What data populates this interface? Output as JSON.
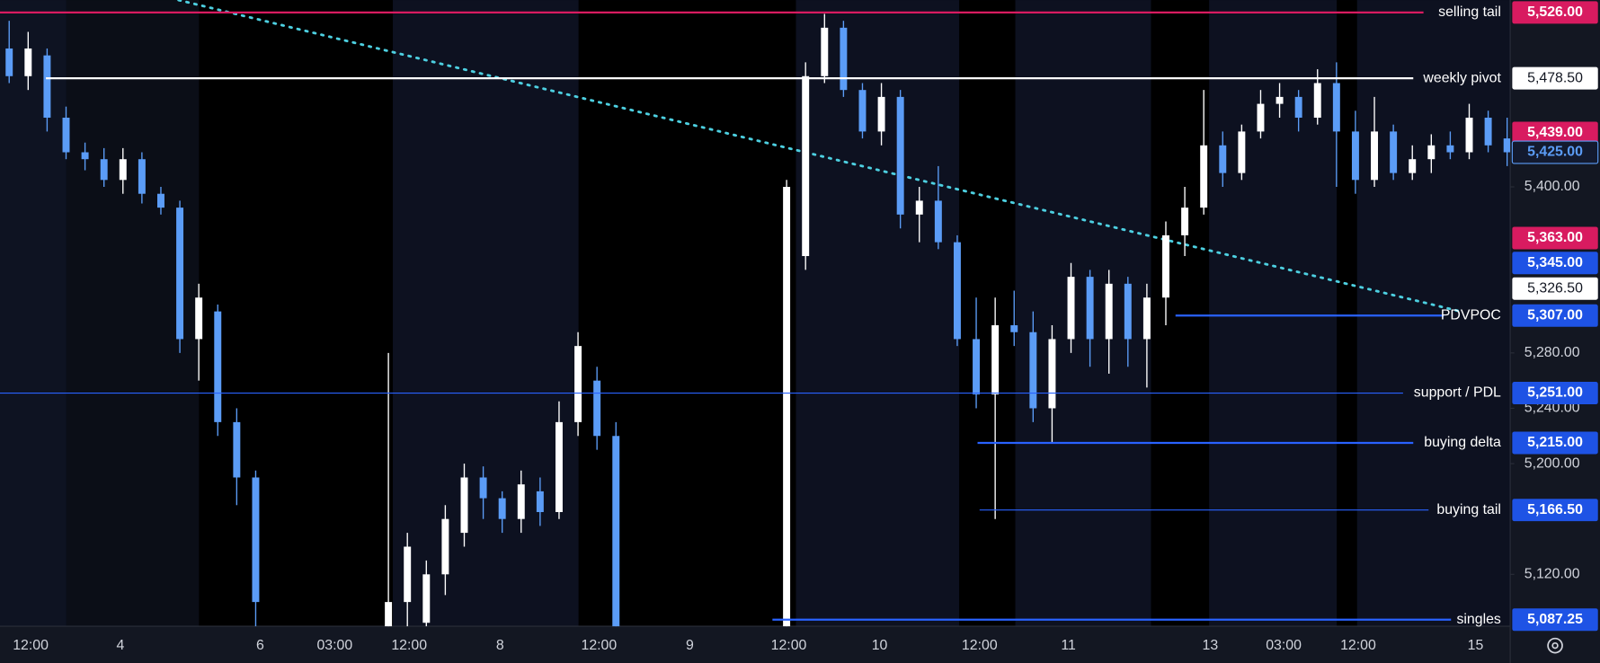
{
  "chart_data": {
    "type": "candlestick",
    "ylim": [
      5082.5,
      5535
    ],
    "yticks": [
      {
        "value": 5400,
        "label": "5,400.00"
      },
      {
        "value": 5280,
        "label": "5,280.00"
      },
      {
        "value": 5240,
        "label": "5,240.00"
      },
      {
        "value": 5200,
        "label": "5,200.00"
      },
      {
        "value": 5120,
        "label": "5,120.00"
      }
    ],
    "xlabels": [
      "12:00",
      "4",
      "6",
      "03:00",
      "12:00",
      "8",
      "12:00",
      "9",
      "12:00",
      "10",
      "12:00",
      "11",
      "13",
      "03:00",
      "12:00",
      "15"
    ],
    "up_color": "#ffffff",
    "down_color": "#5b9cf6",
    "open": [
      5500,
      5480,
      5495,
      5450,
      5425,
      5420,
      5405,
      5420,
      5395,
      5385,
      5290,
      5310,
      5230,
      5190,
      null,
      null,
      null,
      null,
      null,
      null,
      5075,
      5100,
      5085,
      5120,
      5150,
      5190,
      5175,
      5160,
      5180,
      5165,
      5230,
      5260,
      5220,
      null,
      null,
      null,
      null,
      null,
      null,
      null,
      null,
      5080,
      5350,
      5480,
      5515,
      5470,
      5440,
      5465,
      5380,
      5390,
      5360,
      5290,
      5250,
      5300,
      5295,
      5240,
      5290,
      5335,
      5290,
      5330,
      5290,
      5320,
      5365,
      5385,
      5430,
      5410,
      5440,
      5460,
      5465,
      5450,
      5475,
      5440,
      5405,
      5440,
      5410,
      5420,
      5430,
      5425,
      5450,
      5435
    ],
    "high": [
      5520,
      5512,
      5500,
      5458,
      5432,
      5428,
      5428,
      5425,
      5400,
      5390,
      5330,
      5315,
      5240,
      5195,
      null,
      null,
      null,
      null,
      null,
      null,
      5280,
      5150,
      5130,
      5170,
      5200,
      5198,
      5180,
      5195,
      5190,
      5245,
      5295,
      5270,
      5230,
      null,
      null,
      null,
      null,
      null,
      null,
      null,
      null,
      5405,
      5490,
      5525,
      5520,
      5475,
      5475,
      5470,
      5400,
      5415,
      5365,
      5320,
      5320,
      5325,
      5310,
      5300,
      5345,
      5340,
      5340,
      5335,
      5330,
      5375,
      5400,
      5470,
      5440,
      5445,
      5470,
      5475,
      5470,
      5485,
      5490,
      5455,
      5465,
      5445,
      5430,
      5438,
      5440,
      5460,
      5455,
      5450
    ],
    "low": [
      5475,
      5470,
      5440,
      5420,
      5412,
      5400,
      5395,
      5388,
      5380,
      5280,
      5260,
      5220,
      5170,
      5080,
      null,
      null,
      null,
      null,
      null,
      null,
      5060,
      5070,
      5070,
      5105,
      5140,
      5160,
      5150,
      5150,
      5155,
      5160,
      5220,
      5210,
      5070,
      null,
      null,
      null,
      null,
      null,
      null,
      null,
      null,
      5060,
      5340,
      5475,
      5465,
      5435,
      5430,
      5370,
      5360,
      5355,
      5285,
      5240,
      5160,
      5285,
      5230,
      5215,
      5280,
      5270,
      5265,
      5270,
      5255,
      5300,
      5350,
      5380,
      5400,
      5405,
      5435,
      5450,
      5440,
      5445,
      5400,
      5395,
      5400,
      5405,
      5405,
      5410,
      5420,
      5420,
      5425,
      5415
    ],
    "close": [
      5480,
      5500,
      5450,
      5425,
      5420,
      5405,
      5420,
      5395,
      5385,
      5290,
      5320,
      5230,
      5190,
      5100,
      null,
      null,
      null,
      null,
      null,
      null,
      5100,
      5140,
      5120,
      5160,
      5190,
      5175,
      5160,
      5185,
      5165,
      5230,
      5285,
      5220,
      5080,
      null,
      null,
      null,
      null,
      null,
      null,
      null,
      null,
      5400,
      5480,
      5515,
      5470,
      5440,
      5465,
      5380,
      5390,
      5360,
      5290,
      5250,
      5300,
      5295,
      5240,
      5290,
      5335,
      5290,
      5330,
      5290,
      5320,
      5365,
      5385,
      5430,
      5410,
      5440,
      5460,
      5465,
      5450,
      5475,
      5440,
      5405,
      5440,
      5410,
      5420,
      5430,
      5425,
      5450,
      5430,
      5425
    ],
    "levels": [
      {
        "label": "selling tail",
        "value": 5526,
        "value_label": "5,526.00",
        "color": "#d81b60"
      },
      {
        "label": "weekly pivot",
        "value": 5478.5,
        "value_label": "5,478.50",
        "color": "#ffffff"
      },
      {
        "value": 5439,
        "value_label": "5,439.00",
        "color": "#d81b60"
      },
      {
        "value": 5425,
        "value_label": "5,425.00",
        "color": "#131a2e"
      },
      {
        "value": 5363,
        "value_label": "5,363.00",
        "color": "#d81b60"
      },
      {
        "value": 5345,
        "value_label": "5,345.00",
        "color": "#1e53e5"
      },
      {
        "value": 5326.5,
        "value_label": "5,326.50",
        "color": "#ffffff"
      },
      {
        "label": "PDVPOC",
        "value": 5307,
        "value_label": "5,307.00",
        "color": "#1e53e5"
      },
      {
        "label": "support / PDL",
        "value": 5251,
        "value_label": "5,251.00",
        "color": "#1e53e5"
      },
      {
        "label": "buying delta",
        "value": 5215,
        "value_label": "5,215.00",
        "color": "#1e53e5"
      },
      {
        "label": "buying tail",
        "value": 5166.5,
        "value_label": "5,166.50",
        "color": "#1e53e5"
      },
      {
        "label": "singles",
        "value": 5087.25,
        "value_label": "5,087.25",
        "color": "#1e53e5"
      }
    ]
  }
}
